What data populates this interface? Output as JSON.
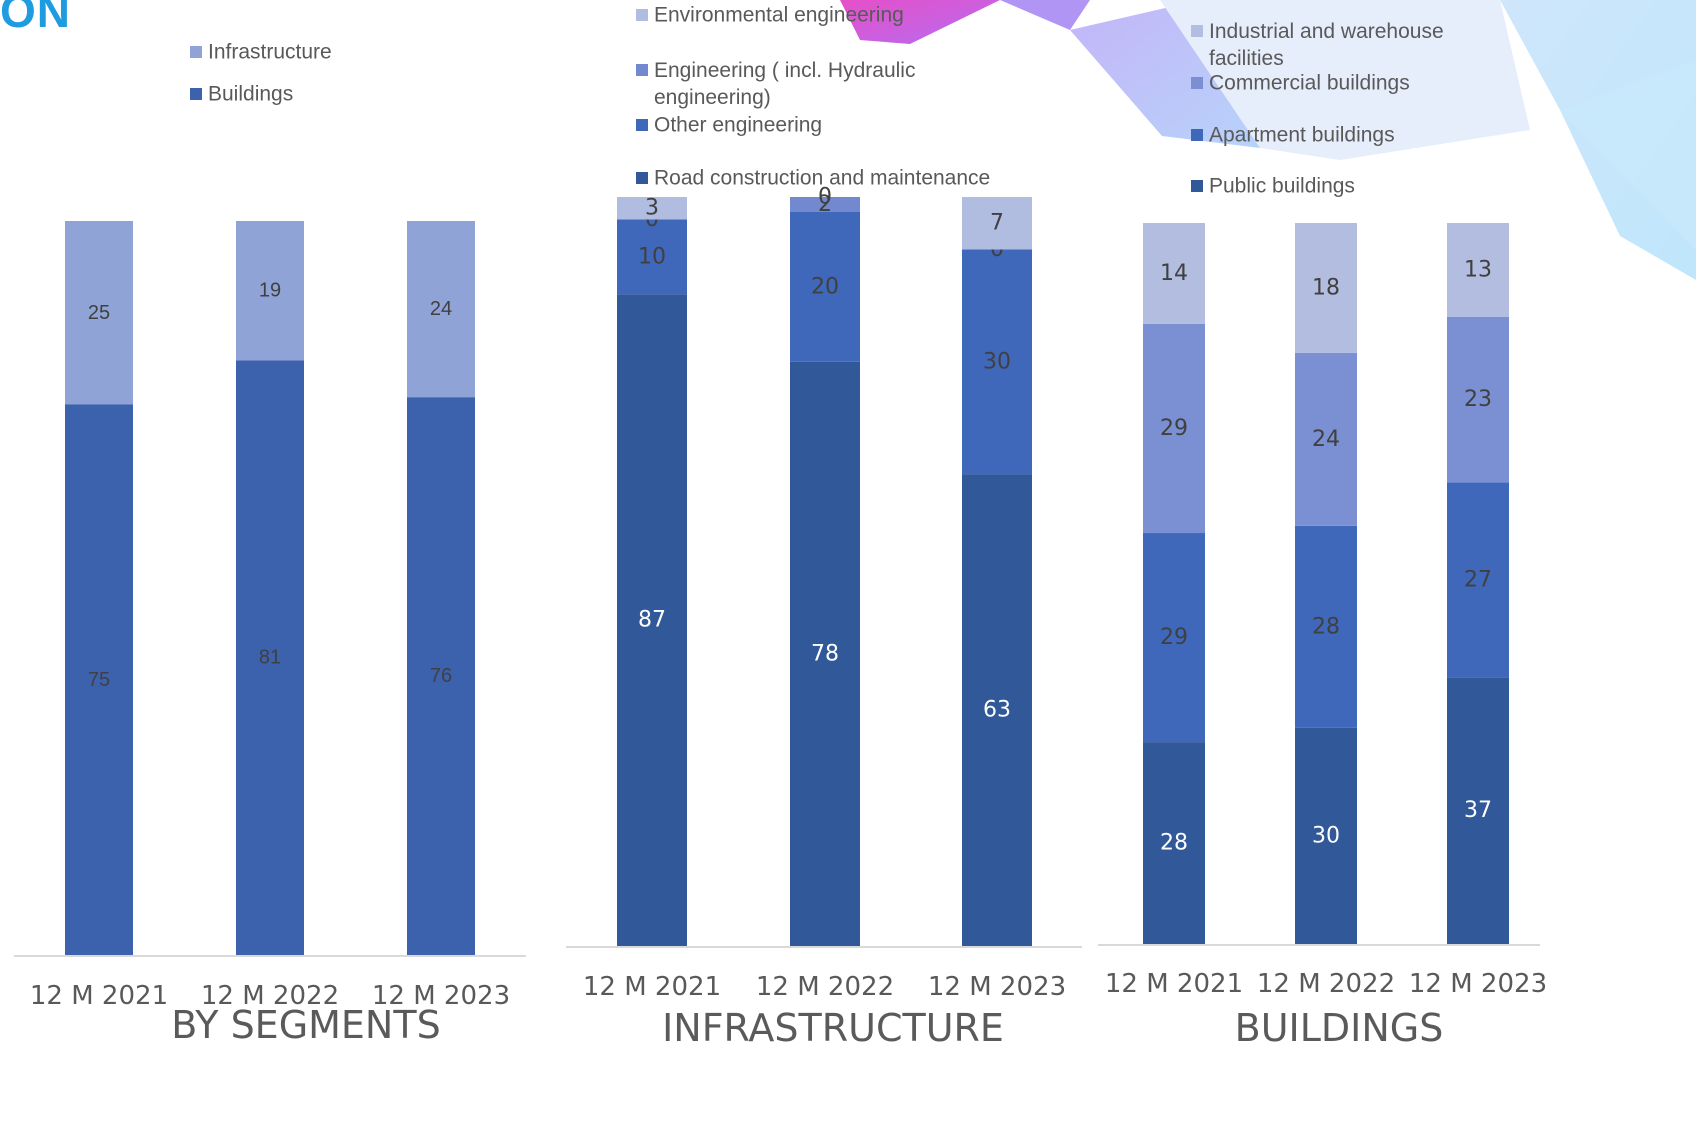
{
  "header": {
    "text": "ON"
  },
  "chart_data": [
    {
      "id": "segments",
      "type": "bar",
      "stacked": true,
      "title": "BY SEGMENTS",
      "categories": [
        "12 M 2021",
        "12 M 2022",
        "12 M 2023"
      ],
      "series": [
        {
          "name": "Buildings",
          "values": [
            75,
            81,
            76
          ],
          "color": "#3c62ad",
          "label_color": "#404040"
        },
        {
          "name": "Infrastructure",
          "values": [
            25,
            19,
            24
          ],
          "color": "#8fa3d6",
          "label_color": "#404040"
        }
      ],
      "ylim": [
        0,
        100
      ],
      "legend": "top-left"
    },
    {
      "id": "infrastructure",
      "type": "bar",
      "stacked": true,
      "title": "INFRASTRUCTURE",
      "categories": [
        "12 M 2021",
        "12 M 2022",
        "12 M 2023"
      ],
      "series": [
        {
          "name": "Road construction and maintenance",
          "values": [
            87,
            78,
            63
          ],
          "color": "#315898",
          "label_color": "#ffffff"
        },
        {
          "name": "Other engineering",
          "values": [
            10,
            20,
            30
          ],
          "color": "#3f68ba",
          "label_color": "#404040"
        },
        {
          "name": "Engineering ( incl. Hydraulic engineering)",
          "values": [
            0,
            2,
            0
          ],
          "color": "#7289cf",
          "label_color": "#404040"
        },
        {
          "name": "Environmental engineering",
          "values": [
            3,
            0,
            7
          ],
          "color": "#b0bce0",
          "label_color": "#404040"
        }
      ],
      "ylim": [
        0,
        100
      ],
      "legend": "top"
    },
    {
      "id": "buildings",
      "type": "bar",
      "stacked": true,
      "title": "BUILDINGS",
      "categories": [
        "12 M 2021",
        "12 M 2022",
        "12 M 2023"
      ],
      "series": [
        {
          "name": "Public buildings",
          "values": [
            28,
            30,
            37
          ],
          "color": "#315898",
          "label_color": "#ffffff"
        },
        {
          "name": "Apartment buildings",
          "values": [
            29,
            28,
            27
          ],
          "color": "#3f68ba",
          "label_color": "#404040"
        },
        {
          "name": "Commercial buildings",
          "values": [
            29,
            24,
            23
          ],
          "color": "#7a90d2",
          "label_color": "#404040"
        },
        {
          "name": "Industrial and warehouse facilities",
          "values": [
            14,
            18,
            13
          ],
          "color": "#b2bde0",
          "label_color": "#404040"
        }
      ],
      "ylim": [
        0,
        100
      ],
      "legend": "top-right"
    }
  ]
}
